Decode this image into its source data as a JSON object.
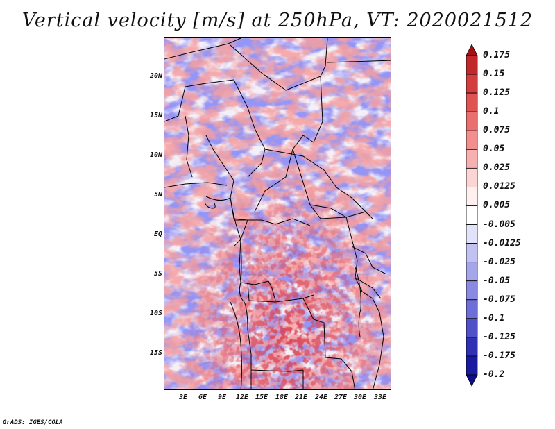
{
  "title": "Vertical velocity [m/s] at 250hPa, VT: 2020021512",
  "footer": "GrADS: IGES/COLA",
  "lat_labels": [
    "20N",
    "15N",
    "10N",
    "5N",
    "EQ",
    "5S",
    "10S",
    "15S"
  ],
  "lon_labels": [
    "3E",
    "6E",
    "9E",
    "12E",
    "15E",
    "18E",
    "21E",
    "24E",
    "27E",
    "30E",
    "33E"
  ],
  "colorbar": {
    "labels": [
      "0.175",
      "0.15",
      "0.125",
      "0.1",
      "0.075",
      "0.05",
      "0.025",
      "0.0125",
      "0.005",
      "-0.005",
      "-0.0125",
      "-0.025",
      "-0.05",
      "-0.075",
      "-0.1",
      "-0.125",
      "-0.175",
      "-0.2"
    ],
    "colors": [
      "#a50f15",
      "#c0282b",
      "#d43d3d",
      "#e05353",
      "#ea7070",
      "#f18e8e",
      "#f7b0b0",
      "#fbd4d4",
      "#fff0ef",
      "#ffffff",
      "#e2e2f8",
      "#c2c2f1",
      "#a5a5ea",
      "#8a8ae2",
      "#6e6ed8",
      "#5050c9",
      "#3030b4",
      "#1a1aa0",
      "#0d0d8a"
    ]
  }
}
